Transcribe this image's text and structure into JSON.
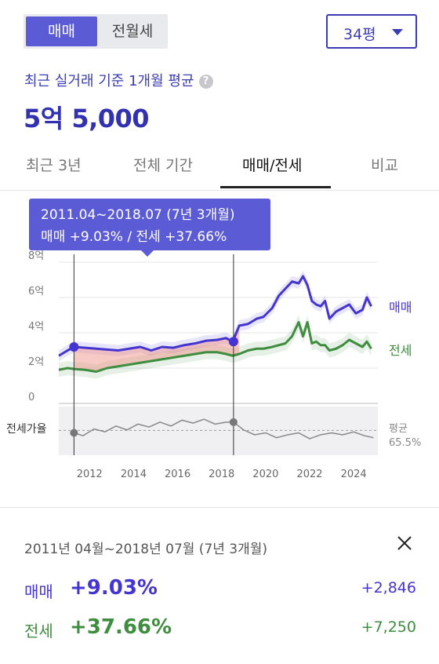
{
  "trade_tabs": {
    "sale": "매매",
    "lease": "전월세"
  },
  "size_select": {
    "value": "34평"
  },
  "summary": {
    "label": "최근 실거래 기준 1개월 평균",
    "help_icon": "question-circle-icon",
    "price": "5억 5,000"
  },
  "period_tabs": [
    "최근 3년",
    "전체 기간",
    "매매/전세",
    "비교"
  ],
  "active_period_tab": "매매/전세",
  "tooltip": {
    "range": "2011.04~2018.07 (7년 3개월)",
    "summary": "매매 +9.03%  /  전세 +37.66%"
  },
  "ratio": {
    "label": "전세가율",
    "avg_label": "평균",
    "avg_value": "65.5%"
  },
  "detail": {
    "period": "2011년 04월~2018년 07월 (7년 3개월)",
    "close_icon": "close-icon",
    "sale": {
      "label": "매매",
      "pct": "+9.03%",
      "amount": "+2,846"
    },
    "lease": {
      "label": "전세",
      "pct": "+37.66%",
      "amount": "+7,250"
    }
  },
  "colors": {
    "sale": "#4535d0",
    "lease": "#3f8d3f",
    "accent": "#5b5bd6"
  },
  "chart_data": {
    "type": "line",
    "x_ticks": [
      2012,
      2014,
      2016,
      2018,
      2020,
      2022,
      2024
    ],
    "y_ticks": [
      "0",
      "2억",
      "4억",
      "6억",
      "8억"
    ],
    "ylim": [
      0,
      8
    ],
    "xlim": [
      2010.6,
      2025.1
    ],
    "selection": {
      "start": 2011.29,
      "end": 2018.54
    },
    "series": [
      {
        "name": "매매",
        "unit": "억",
        "x": [
          2010.6,
          2011.0,
          2011.3,
          2011.8,
          2012.3,
          2012.8,
          2013.3,
          2013.8,
          2014.3,
          2014.8,
          2015.3,
          2015.8,
          2016.3,
          2016.8,
          2017.3,
          2017.8,
          2018.2,
          2018.5,
          2018.8,
          2019.2,
          2019.6,
          2019.9,
          2020.3,
          2020.6,
          2020.9,
          2021.2,
          2021.5,
          2021.7,
          2021.9,
          2022.1,
          2022.3,
          2022.5,
          2022.7,
          2022.9,
          2023.2,
          2023.5,
          2023.8,
          2024.1,
          2024.4,
          2024.6,
          2024.8
        ],
        "values": [
          2.7,
          3.0,
          3.2,
          3.15,
          3.1,
          3.05,
          3.0,
          3.1,
          3.2,
          3.0,
          3.2,
          3.15,
          3.3,
          3.4,
          3.55,
          3.6,
          3.7,
          3.5,
          4.4,
          4.5,
          4.8,
          4.9,
          5.4,
          6.1,
          6.5,
          6.9,
          6.8,
          7.2,
          6.7,
          5.8,
          5.6,
          5.5,
          5.8,
          4.8,
          5.2,
          5.4,
          5.6,
          5.1,
          5.3,
          6.0,
          5.5
        ]
      },
      {
        "name": "전세",
        "unit": "억",
        "x": [
          2010.6,
          2011.0,
          2011.3,
          2011.8,
          2012.3,
          2012.8,
          2013.3,
          2013.8,
          2014.3,
          2014.8,
          2015.3,
          2015.8,
          2016.3,
          2016.8,
          2017.3,
          2017.8,
          2018.2,
          2018.5,
          2018.8,
          2019.2,
          2019.6,
          2019.9,
          2020.3,
          2020.6,
          2020.9,
          2021.2,
          2021.5,
          2021.7,
          2021.9,
          2022.1,
          2022.3,
          2022.5,
          2022.7,
          2022.9,
          2023.2,
          2023.5,
          2023.8,
          2024.1,
          2024.4,
          2024.6,
          2024.8
        ],
        "values": [
          1.9,
          2.0,
          1.95,
          1.9,
          1.8,
          2.0,
          2.1,
          2.2,
          2.3,
          2.4,
          2.5,
          2.6,
          2.7,
          2.8,
          2.9,
          2.9,
          2.8,
          2.7,
          2.8,
          3.0,
          3.1,
          3.1,
          3.2,
          3.3,
          3.4,
          3.8,
          4.6,
          3.8,
          4.6,
          3.4,
          3.5,
          3.3,
          3.3,
          3.0,
          3.1,
          3.3,
          3.6,
          3.4,
          3.2,
          3.5,
          3.1
        ]
      },
      {
        "name": "전세가율",
        "unit": "%",
        "x": [
          2011.3,
          2011.7,
          2012.2,
          2012.7,
          2013.2,
          2013.7,
          2014.2,
          2014.7,
          2015.2,
          2015.7,
          2016.2,
          2016.7,
          2017.2,
          2017.7,
          2018.2,
          2018.54,
          2019.0,
          2019.5,
          2020.0,
          2020.5,
          2021.0,
          2021.5,
          2022.0,
          2022.5,
          2023.0,
          2023.5,
          2024.0,
          2024.5,
          2024.9
        ],
        "values": [
          63,
          60,
          67,
          64,
          70,
          66,
          72,
          69,
          74,
          70,
          76,
          73,
          77,
          72,
          74,
          74,
          66,
          61,
          63,
          58,
          61,
          63,
          57,
          61,
          63,
          61,
          64,
          60,
          58
        ]
      }
    ]
  }
}
